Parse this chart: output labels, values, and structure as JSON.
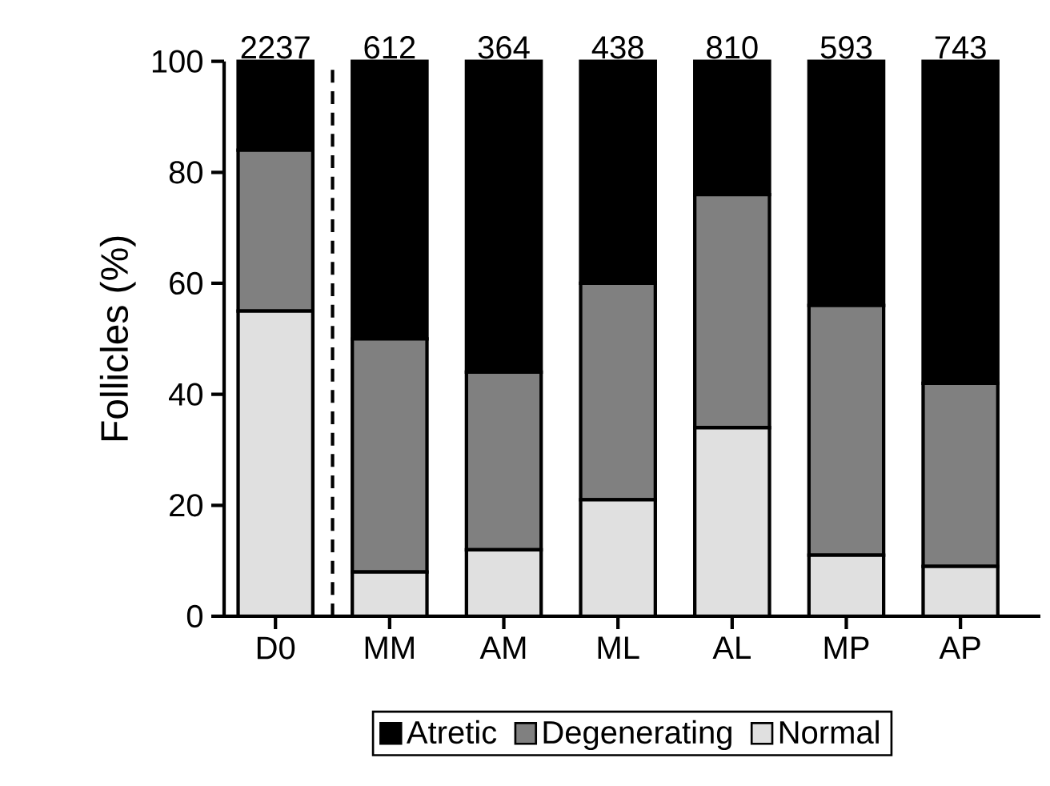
{
  "chart_data": {
    "type": "bar",
    "stacked": true,
    "ylabel": "Follicles (%)",
    "categories": [
      "D0",
      "MM",
      "AM",
      "ML",
      "AL",
      "MP",
      "AP"
    ],
    "series": [
      {
        "name": "Normal",
        "color": "#e0e0e0",
        "values": [
          55,
          8,
          12,
          21,
          34,
          11,
          9
        ]
      },
      {
        "name": "Degenerating",
        "color": "#808080",
        "values": [
          29,
          42,
          32,
          39,
          42,
          45,
          33
        ]
      },
      {
        "name": "Atretic",
        "color": "#000000",
        "values": [
          16,
          50,
          56,
          40,
          24,
          44,
          58
        ]
      }
    ],
    "annotations": [
      {
        "text": "2237",
        "x": "D0",
        "y": 100
      },
      {
        "text": "612",
        "x": "MM",
        "y": 100
      },
      {
        "text": "364",
        "x": "AM",
        "y": 100
      },
      {
        "text": "438",
        "x": "ML",
        "y": 100
      },
      {
        "text": "810",
        "x": "AL",
        "y": 100
      },
      {
        "text": "593",
        "x": "MP",
        "y": 100
      },
      {
        "text": "743",
        "x": "AP",
        "y": 100
      }
    ],
    "ylim": [
      0,
      100
    ],
    "yticks": [
      0,
      20,
      40,
      60,
      80,
      100
    ],
    "grid": false,
    "legend": "bottom"
  }
}
